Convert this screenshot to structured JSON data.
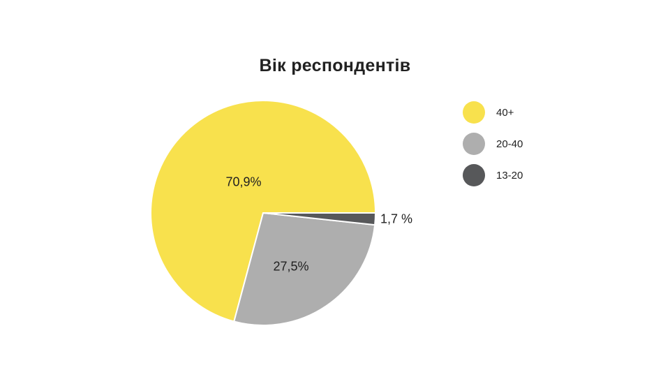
{
  "page": {
    "background": "#ffffff"
  },
  "chart_data": {
    "type": "pie",
    "title": "Вік респондентів",
    "categories": [
      "40+",
      "20-40",
      "13-20"
    ],
    "values": [
      70.9,
      27.5,
      1.7
    ],
    "value_labels": [
      "70,9%",
      "27,5%",
      "1,7 %"
    ],
    "colors": [
      "#F8E14D",
      "#AEAEAE",
      "#57585A"
    ],
    "label_color": "#212121",
    "title_color": "#212121",
    "slice_border_color": "#FFFFFF",
    "slice_border_width": 2,
    "start_angle_deg": 0,
    "direction": "counterclockwise",
    "legend_position": "right",
    "label_placement": "inside; smallest slice labeled outside"
  }
}
